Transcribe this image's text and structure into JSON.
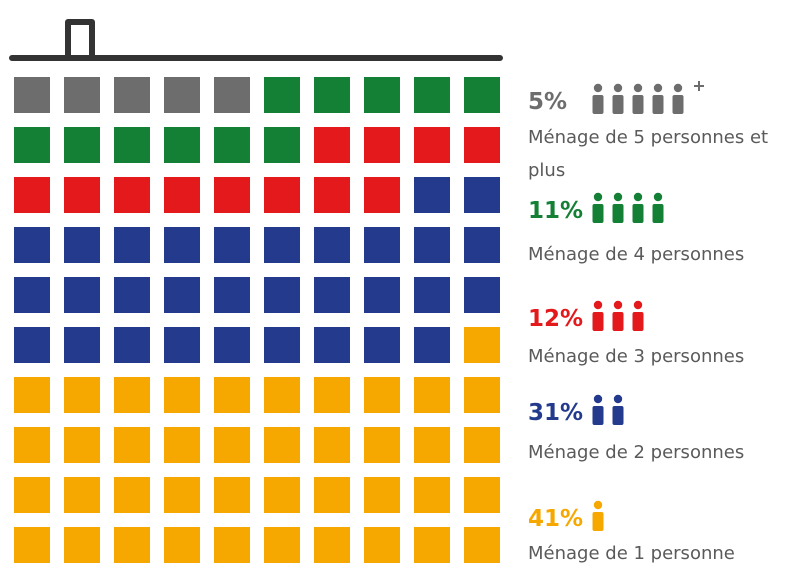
{
  "chart_data": {
    "type": "waffle",
    "series": [
      {
        "name": "Ménage de 5 personnes et plus",
        "color": "#6d6d6d",
        "values": [
          5
        ],
        "value_labels": [
          "5%"
        ]
      },
      {
        "name": "Ménage de 4 personnes",
        "color": "#138035",
        "values": [
          11
        ],
        "value_labels": [
          "11%"
        ]
      },
      {
        "name": "Ménage de 3 personnes",
        "color": "#e3191c",
        "values": [
          12
        ],
        "value_labels": [
          "12%"
        ]
      },
      {
        "name": "Ménage de 2 personnes",
        "color": "#233a8d",
        "values": [
          31
        ],
        "value_labels": [
          "31%"
        ]
      },
      {
        "name": "Ménage de 1 personne",
        "color": "#f7a800",
        "values": [
          41
        ],
        "value_labels": [
          "41%"
        ]
      }
    ]
  }
}
